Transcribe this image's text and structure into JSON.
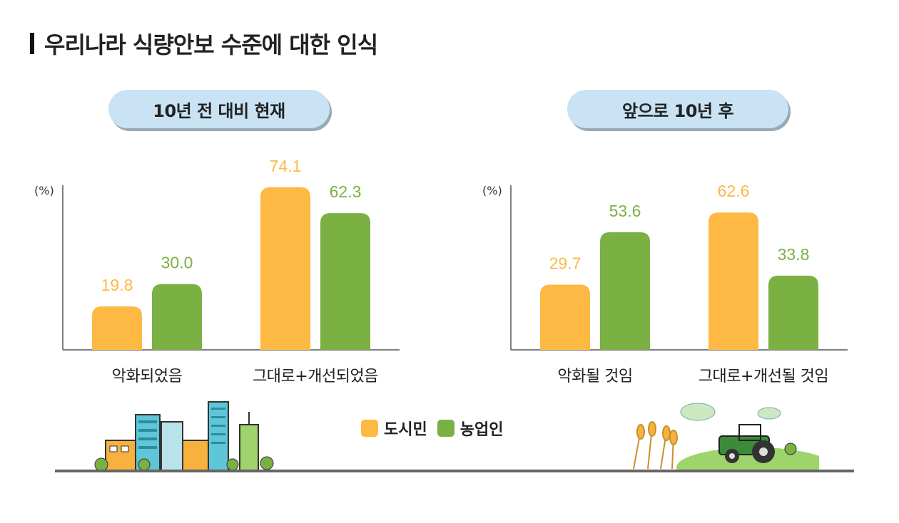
{
  "page": {
    "title": "우리나라 식량안보 수준에 대한 인식"
  },
  "colors": {
    "city": "#fdb944",
    "farm": "#7bb043",
    "pill_bg": "#c9e3f4",
    "axis": "#555555"
  },
  "chart_data": [
    {
      "type": "bar",
      "title": "10년 전 대비 현재",
      "unit": "(%)",
      "categories": [
        "악화되었음",
        "그대로+개선되었음"
      ],
      "series": [
        {
          "name": "도시민",
          "values": [
            19.8,
            74.1
          ]
        },
        {
          "name": "농업인",
          "values": [
            30.0,
            62.3
          ]
        }
      ],
      "value_labels": [
        [
          "19.8",
          "74.1"
        ],
        [
          "30.0",
          "62.3"
        ]
      ],
      "ylim": [
        0,
        80
      ]
    },
    {
      "type": "bar",
      "title": "앞으로 10년 후",
      "unit": "(%)",
      "categories": [
        "악화될 것임",
        "그대로+개선될 것임"
      ],
      "series": [
        {
          "name": "도시민",
          "values": [
            29.7,
            62.6
          ]
        },
        {
          "name": "농업인",
          "values": [
            53.6,
            33.8
          ]
        }
      ],
      "value_labels": [
        [
          "29.7",
          "62.6"
        ],
        [
          "53.6",
          "33.8"
        ]
      ],
      "ylim": [
        0,
        80
      ]
    }
  ],
  "legend": {
    "items": [
      {
        "label": "도시민",
        "color": "#fdb944"
      },
      {
        "label": "농업인",
        "color": "#7bb043"
      }
    ]
  },
  "illustrations": {
    "left": "city-buildings-illustration",
    "right": "farm-tractor-illustration"
  }
}
